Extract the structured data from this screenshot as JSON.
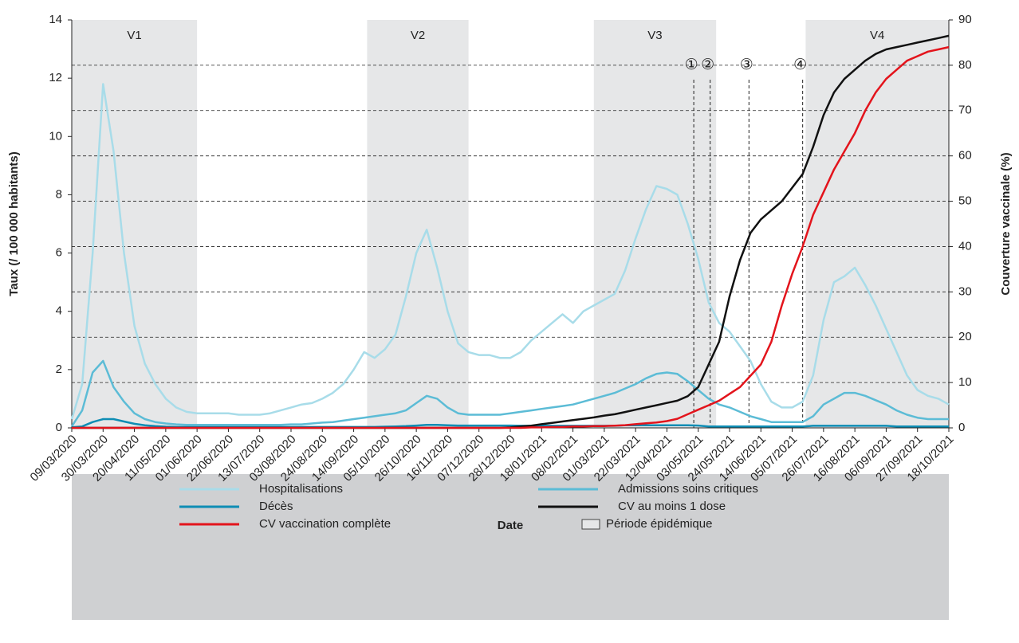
{
  "chart_data": {
    "type": "line",
    "xlabel": "Date",
    "ylabel": "Taux (/ 100 000 habitants)",
    "y2label": "Couverture vaccinale (%)",
    "x": [
      "09/03/2020",
      "16/03/2020",
      "23/03/2020",
      "30/03/2020",
      "06/04/2020",
      "13/04/2020",
      "20/04/2020",
      "27/04/2020",
      "04/05/2020",
      "11/05/2020",
      "18/05/2020",
      "25/05/2020",
      "01/06/2020",
      "08/06/2020",
      "15/06/2020",
      "22/06/2020",
      "29/06/2020",
      "06/07/2020",
      "13/07/2020",
      "20/07/2020",
      "27/07/2020",
      "03/08/2020",
      "10/08/2020",
      "17/08/2020",
      "24/08/2020",
      "31/08/2020",
      "07/09/2020",
      "14/09/2020",
      "21/09/2020",
      "28/09/2020",
      "05/10/2020",
      "12/10/2020",
      "19/10/2020",
      "26/10/2020",
      "02/11/2020",
      "09/11/2020",
      "16/11/2020",
      "23/11/2020",
      "30/11/2020",
      "07/12/2020",
      "14/12/2020",
      "21/12/2020",
      "28/12/2020",
      "04/01/2021",
      "11/01/2021",
      "18/01/2021",
      "25/01/2021",
      "01/02/2021",
      "08/02/2021",
      "15/02/2021",
      "22/02/2021",
      "01/03/2021",
      "08/03/2021",
      "15/03/2021",
      "22/03/2021",
      "29/03/2021",
      "05/04/2021",
      "12/04/2021",
      "19/04/2021",
      "26/04/2021",
      "03/05/2021",
      "10/05/2021",
      "17/05/2021",
      "24/05/2021",
      "31/05/2021",
      "07/06/2021",
      "14/06/2021",
      "21/06/2021",
      "28/06/2021",
      "05/07/2021",
      "12/07/2021",
      "19/07/2021",
      "26/07/2021",
      "02/08/2021",
      "09/08/2021",
      "16/08/2021",
      "23/08/2021",
      "30/08/2021",
      "06/09/2021",
      "13/09/2021",
      "20/09/2021",
      "27/09/2021",
      "04/10/2021",
      "11/10/2021",
      "18/10/2021"
    ],
    "xlim": [
      "09/03/2020",
      "18/10/2021"
    ],
    "xticks": [
      "09/03/2020",
      "30/03/2020",
      "20/04/2020",
      "11/05/2020",
      "01/06/2020",
      "22/06/2020",
      "13/07/2020",
      "03/08/2020",
      "24/08/2020",
      "14/09/2020",
      "05/10/2020",
      "26/10/2020",
      "16/11/2020",
      "07/12/2020",
      "28/12/2020",
      "18/01/2021",
      "08/02/2021",
      "01/03/2021",
      "22/03/2021",
      "12/04/2021",
      "03/05/2021",
      "24/05/2021",
      "14/06/2021",
      "05/07/2021",
      "26/07/2021",
      "16/08/2021",
      "06/09/2021",
      "27/09/2021",
      "18/10/2021"
    ],
    "ylim": [
      0,
      14
    ],
    "yticks": [
      0,
      2,
      4,
      6,
      8,
      10,
      12,
      14
    ],
    "y2lim": [
      0,
      90
    ],
    "y2ticks": [
      0,
      10,
      20,
      30,
      40,
      50,
      60,
      70,
      80,
      90
    ],
    "grid": true,
    "series": [
      {
        "name": "Hospitalisations",
        "color": "#a8dce9",
        "values": [
          0.3,
          1.5,
          6,
          11.8,
          9.5,
          6,
          3.5,
          2.2,
          1.5,
          1.0,
          0.7,
          0.55,
          0.5,
          0.5,
          0.5,
          0.5,
          0.45,
          0.45,
          0.45,
          0.5,
          0.6,
          0.7,
          0.8,
          0.85,
          1.0,
          1.2,
          1.5,
          2.0,
          2.6,
          2.4,
          2.7,
          3.2,
          4.5,
          6.0,
          6.8,
          5.5,
          4.0,
          2.9,
          2.6,
          2.5,
          2.5,
          2.4,
          2.4,
          2.6,
          3.0,
          3.3,
          3.6,
          3.9,
          3.6,
          4.0,
          4.2,
          4.4,
          4.6,
          5.4,
          6.5,
          7.5,
          8.3,
          8.2,
          8.0,
          7.0,
          5.8,
          4.3,
          3.6,
          3.3,
          2.8,
          2.3,
          1.5,
          0.9,
          0.7,
          0.7,
          0.9,
          1.8,
          3.7,
          5.0,
          5.2,
          5.5,
          4.9,
          4.2,
          3.4,
          2.6,
          1.8,
          1.3,
          1.1,
          1.0,
          0.8
        ]
      },
      {
        "name": "Admissions soins critiques",
        "color": "#5cbcd6",
        "values": [
          0.05,
          0.6,
          1.9,
          2.3,
          1.4,
          0.9,
          0.5,
          0.3,
          0.2,
          0.15,
          0.12,
          0.1,
          0.1,
          0.1,
          0.1,
          0.1,
          0.1,
          0.1,
          0.1,
          0.1,
          0.1,
          0.12,
          0.12,
          0.15,
          0.18,
          0.2,
          0.25,
          0.3,
          0.35,
          0.4,
          0.45,
          0.5,
          0.6,
          0.85,
          1.1,
          1.0,
          0.7,
          0.5,
          0.45,
          0.45,
          0.45,
          0.45,
          0.5,
          0.55,
          0.6,
          0.65,
          0.7,
          0.75,
          0.8,
          0.9,
          1.0,
          1.1,
          1.2,
          1.35,
          1.5,
          1.7,
          1.85,
          1.9,
          1.85,
          1.6,
          1.3,
          1.0,
          0.8,
          0.7,
          0.55,
          0.4,
          0.3,
          0.2,
          0.2,
          0.2,
          0.2,
          0.4,
          0.8,
          1.0,
          1.2,
          1.2,
          1.1,
          0.95,
          0.8,
          0.6,
          0.45,
          0.35,
          0.3,
          0.3,
          0.3
        ]
      },
      {
        "name": "Décès",
        "color": "#0e8db4",
        "values": [
          0.02,
          0.05,
          0.2,
          0.3,
          0.3,
          0.22,
          0.14,
          0.09,
          0.06,
          0.04,
          0.03,
          0.03,
          0.03,
          0.03,
          0.03,
          0.03,
          0.03,
          0.03,
          0.03,
          0.03,
          0.03,
          0.03,
          0.03,
          0.03,
          0.03,
          0.03,
          0.03,
          0.03,
          0.03,
          0.03,
          0.04,
          0.05,
          0.06,
          0.08,
          0.1,
          0.1,
          0.09,
          0.08,
          0.08,
          0.08,
          0.08,
          0.08,
          0.08,
          0.07,
          0.07,
          0.07,
          0.07,
          0.07,
          0.07,
          0.07,
          0.07,
          0.07,
          0.07,
          0.09,
          0.09,
          0.09,
          0.09,
          0.09,
          0.09,
          0.09,
          0.08,
          0.05,
          0.05,
          0.05,
          0.05,
          0.05,
          0.05,
          0.05,
          0.05,
          0.05,
          0.05,
          0.07,
          0.07,
          0.07,
          0.07,
          0.07,
          0.07,
          0.07,
          0.07,
          0.05,
          0.05,
          0.05,
          0.05,
          0.05,
          0.05
        ]
      },
      {
        "name": "CV au moins 1 dose",
        "color": "#111111",
        "axis": "y2",
        "values": [
          0,
          0,
          0,
          0,
          0,
          0,
          0,
          0,
          0,
          0,
          0,
          0,
          0,
          0,
          0,
          0,
          0,
          0,
          0,
          0,
          0,
          0,
          0,
          0,
          0,
          0,
          0,
          0,
          0,
          0,
          0,
          0,
          0,
          0,
          0,
          0,
          0,
          0,
          0,
          0,
          0,
          0,
          0.1,
          0.3,
          0.5,
          0.8,
          1.1,
          1.4,
          1.7,
          2,
          2.3,
          2.7,
          3,
          3.5,
          4,
          4.5,
          5,
          5.5,
          6,
          7,
          9,
          14,
          19,
          29,
          37,
          43,
          46,
          48,
          50,
          53,
          56,
          62,
          69,
          74,
          77,
          79,
          81,
          82.5,
          83.5,
          84,
          84.5,
          85,
          85.5,
          86,
          86.5
        ]
      },
      {
        "name": "CV vaccination complète",
        "color": "#e3141c",
        "axis": "y2",
        "values": [
          0,
          0,
          0,
          0,
          0,
          0,
          0,
          0,
          0,
          0,
          0,
          0,
          0,
          0,
          0,
          0,
          0,
          0,
          0,
          0,
          0,
          0,
          0,
          0,
          0,
          0,
          0,
          0,
          0,
          0,
          0,
          0,
          0,
          0,
          0,
          0,
          0,
          0,
          0,
          0,
          0,
          0,
          0,
          0,
          0.1,
          0.1,
          0.2,
          0.2,
          0.3,
          0.3,
          0.4,
          0.4,
          0.5,
          0.6,
          0.8,
          1,
          1.2,
          1.5,
          2,
          3,
          4,
          5,
          6,
          7.5,
          9,
          11.5,
          14,
          19,
          27,
          34,
          40,
          47,
          52,
          57,
          61,
          65,
          70,
          74,
          77,
          79,
          81,
          82,
          83,
          83.5,
          84
        ]
      }
    ],
    "periods": [
      {
        "label": "V1",
        "start": "09/03/2020",
        "end": "01/06/2020"
      },
      {
        "label": "V2",
        "start": "23/09/2020",
        "end": "30/11/2020"
      },
      {
        "label": "V3",
        "start": "22/02/2021",
        "end": "15/05/2021"
      },
      {
        "label": "V4",
        "start": "14/07/2021",
        "end": "18/10/2021"
      }
    ],
    "period_legend": "Période épidémique",
    "markers": [
      {
        "label": "①",
        "date": "30/04/2021"
      },
      {
        "label": "②",
        "date": "11/05/2021"
      },
      {
        "label": "③",
        "date": "06/06/2021"
      },
      {
        "label": "④",
        "date": "12/07/2021"
      }
    ]
  }
}
